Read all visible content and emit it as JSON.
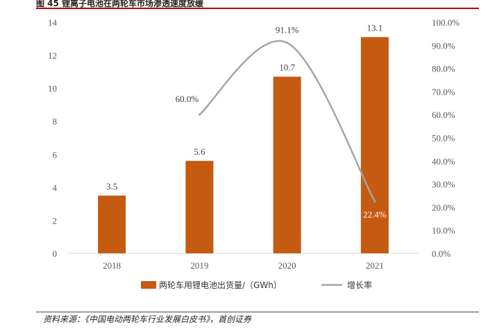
{
  "figure": {
    "title": "图 45 锂离子电池在两轮车市场渗透速度放缓",
    "source": "资料来源：《中国电动两轮车行业发展白皮书》，首创证券"
  },
  "chart_data": {
    "type": "bar",
    "categories": [
      "2018",
      "2019",
      "2020",
      "2021"
    ],
    "series": [
      {
        "name": "两轮车用锂电池出货量/（GWh）",
        "type": "bar",
        "axis": "left",
        "color": "#c55a11",
        "values": [
          3.5,
          5.6,
          10.7,
          13.1
        ],
        "labels": [
          "3.5",
          "5.6",
          "10.7",
          "13.1"
        ]
      },
      {
        "name": "增长率",
        "type": "line",
        "axis": "right",
        "color": "#a6a6a6",
        "values": [
          null,
          60.0,
          91.1,
          22.4
        ],
        "labels": [
          "",
          "60.0%",
          "91.1%",
          "22.4%"
        ]
      }
    ],
    "y_left": {
      "min": 0,
      "max": 14,
      "ticks": [
        "0",
        "2",
        "4",
        "6",
        "8",
        "10",
        "12",
        "14"
      ]
    },
    "y_right": {
      "min": 0,
      "max": 100,
      "ticks": [
        "0.0%",
        "10.0%",
        "20.0%",
        "30.0%",
        "40.0%",
        "50.0%",
        "60.0%",
        "70.0%",
        "80.0%",
        "90.0%",
        "100.0%"
      ]
    },
    "grid": false,
    "legend_position": "bottom"
  }
}
